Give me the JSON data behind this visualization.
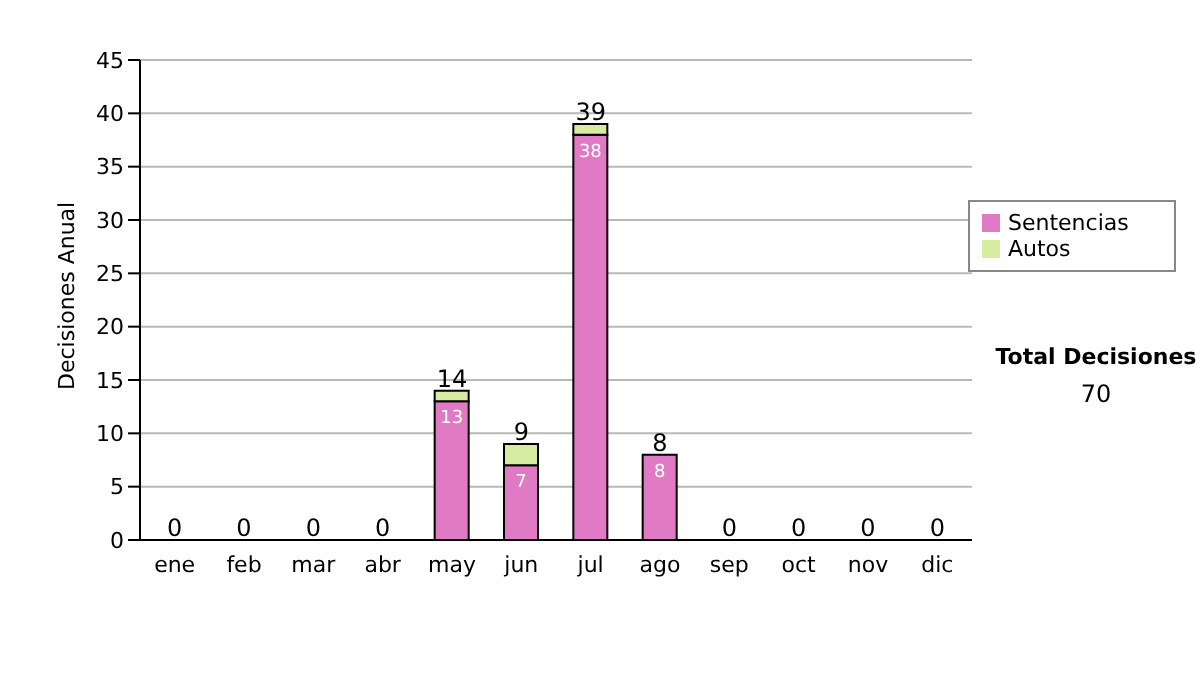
{
  "chart_data": {
    "type": "bar",
    "stacked": true,
    "ylabel": "Decisiones Anual",
    "categories": [
      "ene",
      "feb",
      "mar",
      "abr",
      "may",
      "jun",
      "jul",
      "ago",
      "sep",
      "oct",
      "nov",
      "dic"
    ],
    "series": [
      {
        "name": "Sentencias",
        "color": "#e07ac4",
        "values": [
          0,
          0,
          0,
          0,
          13,
          7,
          38,
          8,
          0,
          0,
          0,
          0
        ],
        "value_labels": [
          null,
          null,
          null,
          null,
          "13",
          "7",
          "38",
          "8",
          null,
          null,
          null,
          null
        ]
      },
      {
        "name": "Autos",
        "color": "#d6eca0",
        "values": [
          0,
          0,
          0,
          0,
          1,
          2,
          1,
          0,
          0,
          0,
          0,
          0
        ]
      }
    ],
    "totals": [
      "0",
      "0",
      "0",
      "0",
      "14",
      "9",
      "39",
      "8",
      "0",
      "0",
      "0",
      "0"
    ],
    "ylim": [
      0,
      45
    ],
    "yticks": [
      0,
      5,
      10,
      15,
      20,
      25,
      30,
      35,
      40,
      45
    ],
    "grid": "y",
    "legend": "right",
    "annotations": [
      "Total Decisiones",
      "70"
    ]
  }
}
